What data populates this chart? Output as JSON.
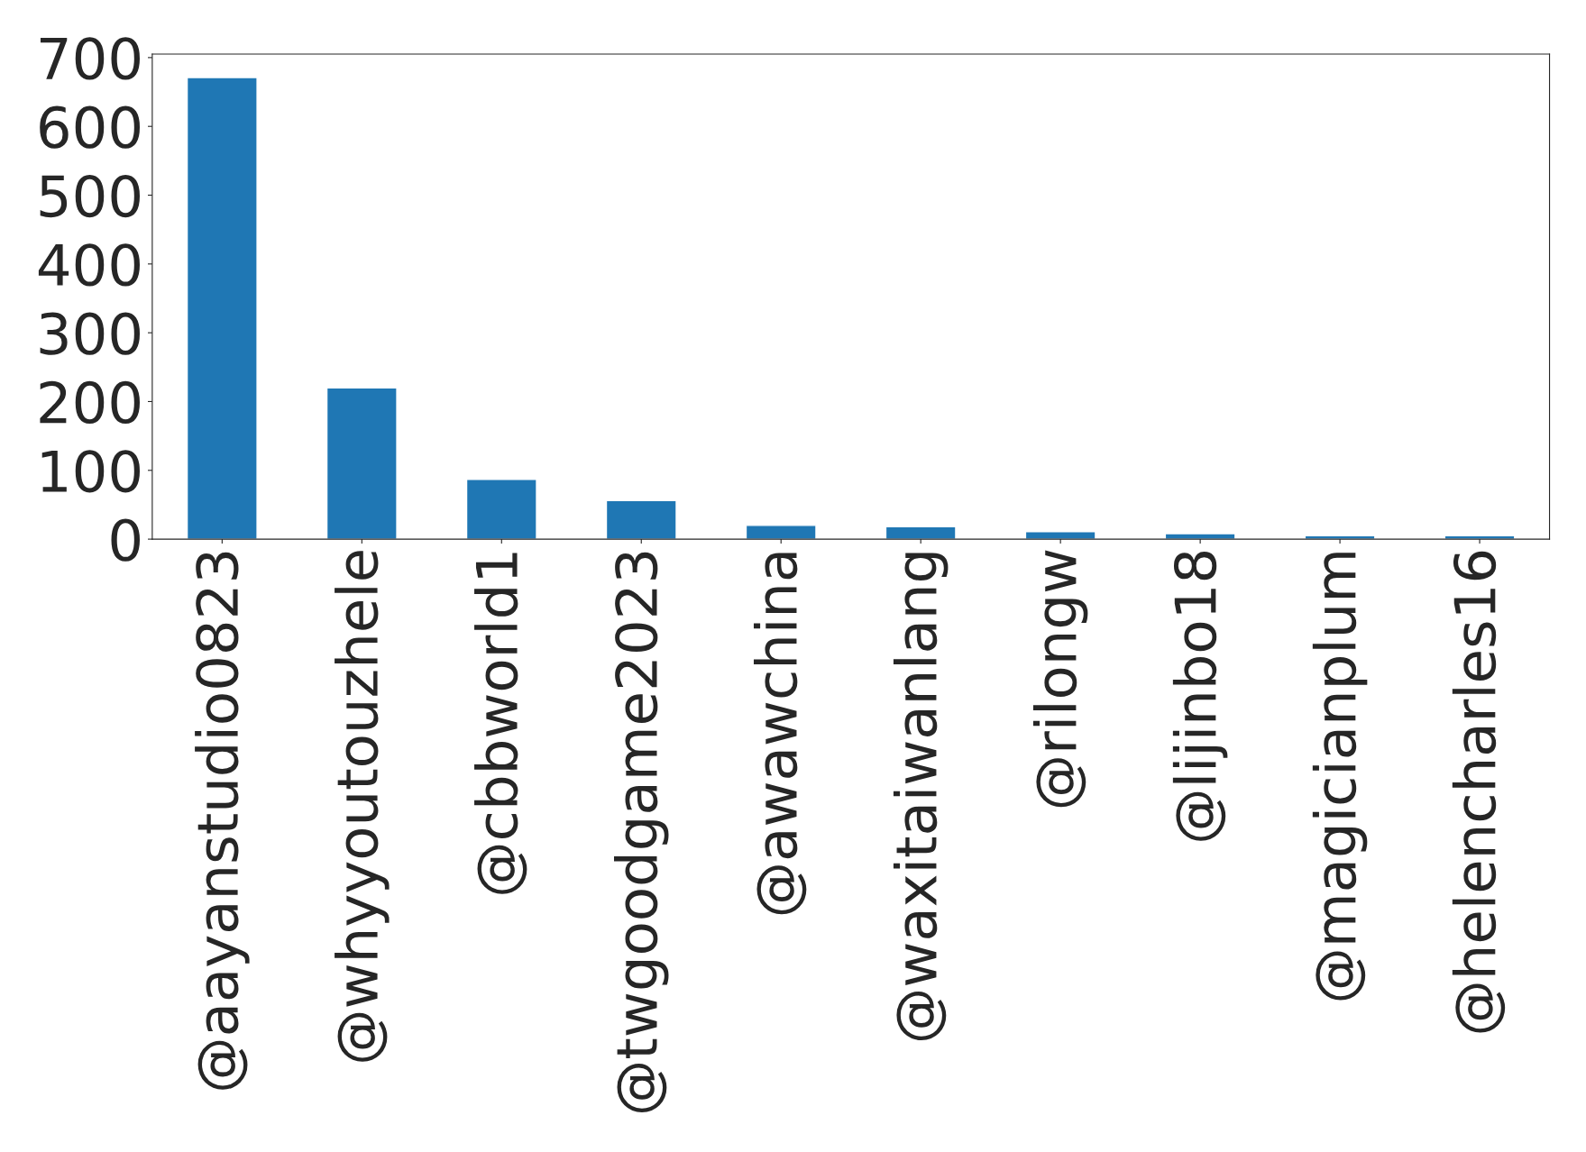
{
  "chart_data": {
    "type": "bar",
    "categories": [
      "@aayanstudio0823",
      "@whyyoutouzhele",
      "@cbbworld1",
      "@twgoodgame2023",
      "@awawchina",
      "@waxitaiwanlang",
      "@rilongw",
      "@lijinbo18",
      "@magicianplum",
      "@helencharles16"
    ],
    "values": [
      671,
      220,
      87,
      56,
      20,
      18,
      11,
      8,
      5,
      5
    ],
    "color": "#1f77b4",
    "ylim": [
      0,
      705
    ],
    "yticks": [
      0,
      100,
      200,
      300,
      400,
      500,
      600,
      700
    ],
    "grid": false
  }
}
